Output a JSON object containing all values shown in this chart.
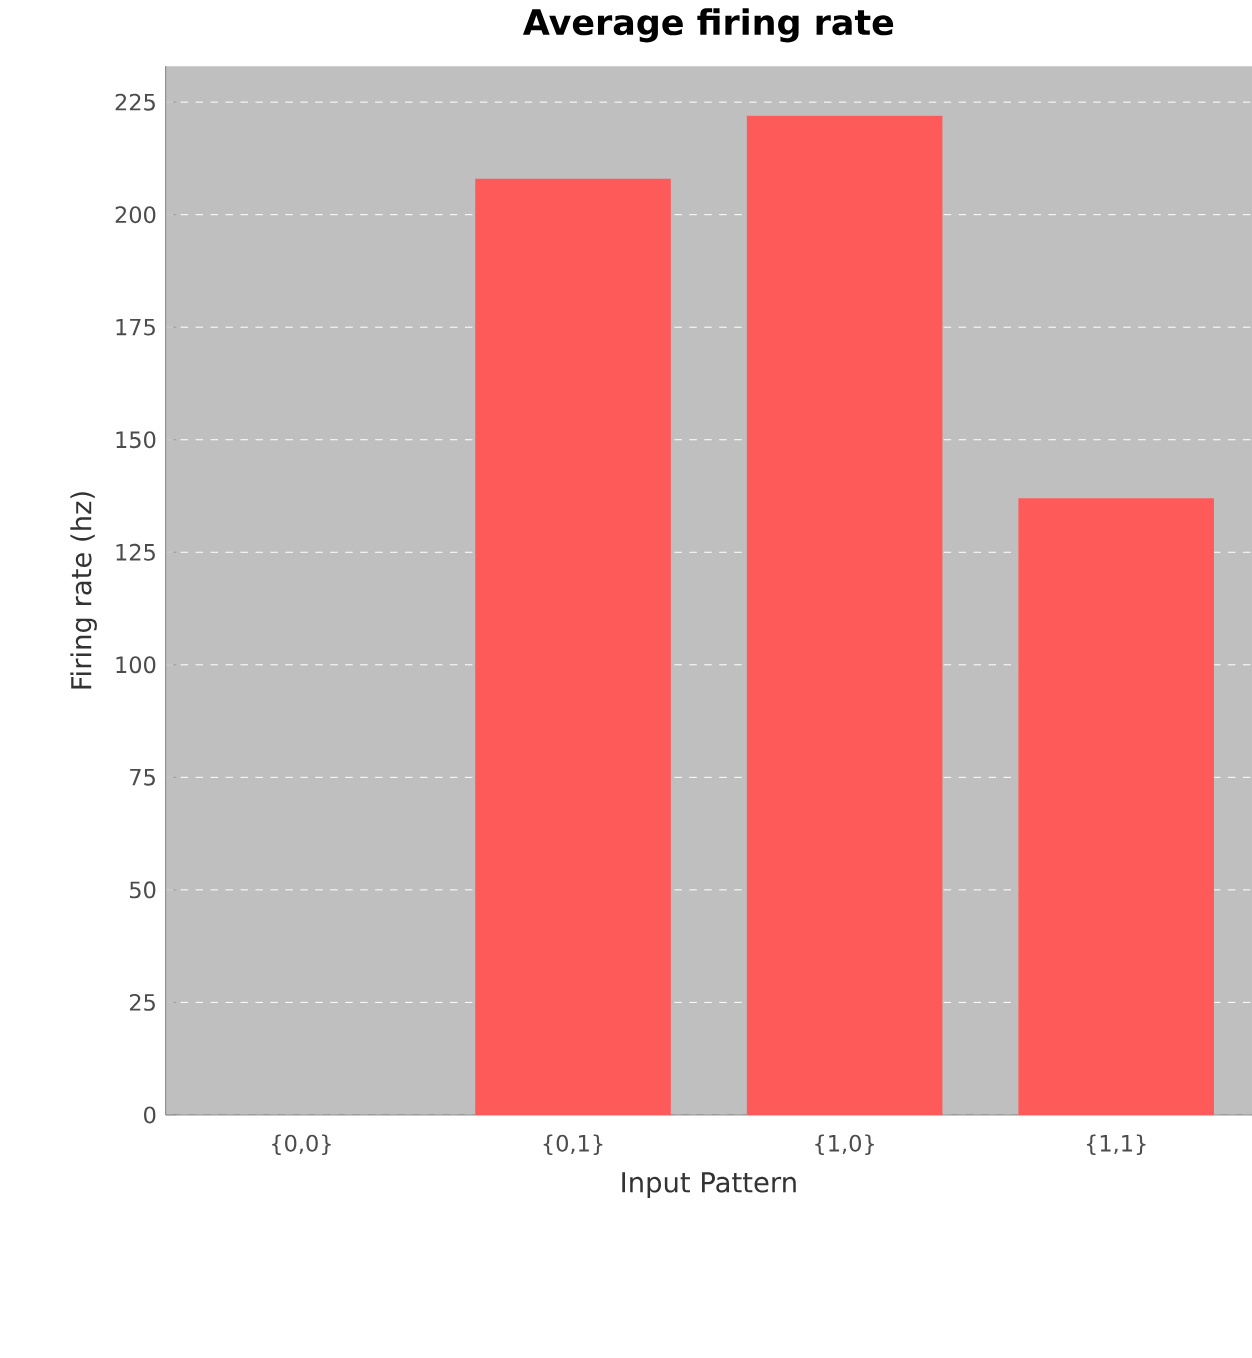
{
  "chart_data": {
    "type": "bar",
    "title": "Average firing rate",
    "xlabel": "Input Pattern",
    "ylabel": "Firing rate (hz)",
    "categories": [
      "{0,0}",
      "{0,1}",
      "{1,0}",
      "{1,1}"
    ],
    "values": [
      0,
      208,
      222,
      137
    ],
    "color": "#ff5a5a",
    "ylim": [
      0,
      233
    ],
    "yticks": [
      0,
      25,
      50,
      75,
      100,
      125,
      150,
      175,
      200,
      225
    ],
    "grid": "y"
  }
}
